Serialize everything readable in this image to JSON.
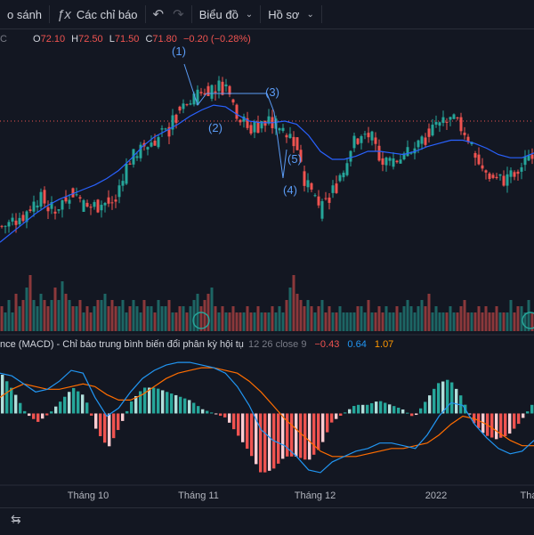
{
  "toolbar": {
    "compare_label": "o sánh",
    "indicators_label": "Các chỉ báo",
    "undo_icon": "undo-icon",
    "redo_icon": "redo-icon",
    "chart_type_label": "Biểu đồ",
    "profile_label": "Hồ sơ"
  },
  "ohlc": {
    "o_label": "O",
    "o": "72.10",
    "h_label": "H",
    "h": "72.50",
    "l_label": "L",
    "l": "71.50",
    "c_label": "C",
    "c": "71.80",
    "change": "−0.20 (−0.28%)"
  },
  "colors": {
    "bg": "#131722",
    "up": "#26a69a",
    "down": "#ef5350",
    "ma": "#2962ff",
    "macd_line": "#2196f3",
    "signal_line": "#ff6d00",
    "wave_labels": "#5b9cf6"
  },
  "chart_data": [
    {
      "type": "candlestick",
      "x_ticks": [
        "Tháng 10",
        "Tháng 11",
        "Tháng 12",
        "2022",
        "Thá"
      ],
      "price_range": [
        63,
        75
      ],
      "ohlc_example": {
        "open": 72.1,
        "high": 72.5,
        "low": 71.5,
        "close": 71.8
      },
      "price_line": 70.2,
      "ma_values": [
        62.6,
        63.2,
        63.8,
        64.4,
        64.9,
        65.3,
        65.6,
        65.9,
        66.2,
        66.6,
        67.1,
        67.8,
        68.6,
        69.2,
        69.6,
        70.0,
        70.5,
        70.9,
        71.2,
        71.1,
        70.6,
        70.2,
        70.1,
        70.1,
        70.2,
        70.0,
        69.3,
        68.3,
        67.8,
        67.8,
        68.0,
        68.3,
        68.3,
        68.2,
        68.1,
        68.3,
        68.6,
        68.8,
        69.0,
        69.0,
        68.8,
        68.5,
        68.1,
        67.9,
        67.9,
        68.2
      ],
      "wave_labels": [
        "(1)",
        "(2)",
        "(3)",
        "(4)",
        "(5)"
      ]
    },
    {
      "type": "bar",
      "name": "volume",
      "values": [
        4,
        3,
        5,
        3,
        6,
        4,
        5,
        7,
        9,
        5,
        4,
        6,
        5,
        4,
        5,
        7,
        5,
        8,
        6,
        5,
        4,
        4,
        5,
        3,
        4,
        3,
        4,
        5,
        5,
        6,
        4,
        5,
        4,
        4,
        5,
        3,
        4,
        5,
        4,
        3,
        5,
        4,
        4,
        3,
        5,
        4,
        4,
        5,
        3,
        3,
        4,
        4,
        3,
        4,
        5,
        6,
        4,
        5,
        6,
        7,
        4,
        3,
        4,
        3,
        3,
        4,
        3,
        3,
        3,
        4,
        3,
        3,
        4,
        3,
        3,
        3,
        4,
        3,
        4,
        3,
        5,
        7,
        9,
        6,
        5,
        4,
        5,
        4,
        3,
        4,
        5,
        3,
        4,
        3,
        3,
        4,
        3,
        3,
        3,
        3,
        4,
        4,
        3,
        5,
        3,
        3,
        4,
        3,
        4,
        3,
        3,
        4,
        3,
        4,
        5,
        4,
        3,
        4,
        5,
        4,
        6,
        3,
        4,
        3,
        3,
        3,
        4,
        3,
        3,
        4,
        5,
        3,
        3,
        3,
        4,
        3,
        4,
        3,
        3,
        4,
        3,
        3,
        3,
        5,
        3,
        4
      ]
    },
    {
      "type": "line",
      "name": "MACD",
      "legend": "nce (MACD) - Chỉ báo trung bình biến đổi phân kỳ hội tụ",
      "params": "12 26 close 9",
      "values": {
        "histogram": "−0.43",
        "macd": "0.64",
        "signal": "1.07"
      },
      "macd_line": [
        1.5,
        1.4,
        1.1,
        0.8,
        0.9,
        1.2,
        1.6,
        1.5,
        0.6,
        -0.1,
        0.2,
        0.8,
        1.3,
        1.6,
        1.8,
        1.9,
        1.9,
        1.8,
        1.7,
        1.5,
        1.0,
        0.3,
        -0.6,
        -1.0,
        -1.2,
        -1.6,
        -2.1,
        -2.2,
        -1.8,
        -1.6,
        -1.4,
        -1.3,
        -1.1,
        -1.1,
        -1.2,
        -1.3,
        -0.8,
        -0.1,
        0.4,
        0.3,
        -0.4,
        -0.9,
        -1.3,
        -1.5,
        -1.4,
        -1.0
      ],
      "signal_line": [
        0.6,
        0.9,
        1.1,
        1.0,
        0.9,
        0.9,
        1.0,
        1.1,
        1.0,
        0.7,
        0.5,
        0.5,
        0.7,
        1.0,
        1.3,
        1.5,
        1.6,
        1.7,
        1.7,
        1.6,
        1.5,
        1.2,
        0.8,
        0.3,
        -0.2,
        -0.6,
        -1.0,
        -1.4,
        -1.6,
        -1.6,
        -1.6,
        -1.5,
        -1.4,
        -1.3,
        -1.3,
        -1.2,
        -1.1,
        -0.8,
        -0.4,
        -0.1,
        -0.2,
        -0.4,
        -0.7,
        -1.0,
        -1.2,
        -1.2
      ]
    }
  ],
  "bottom": {
    "calendar_icon": "calendar-range-icon"
  }
}
